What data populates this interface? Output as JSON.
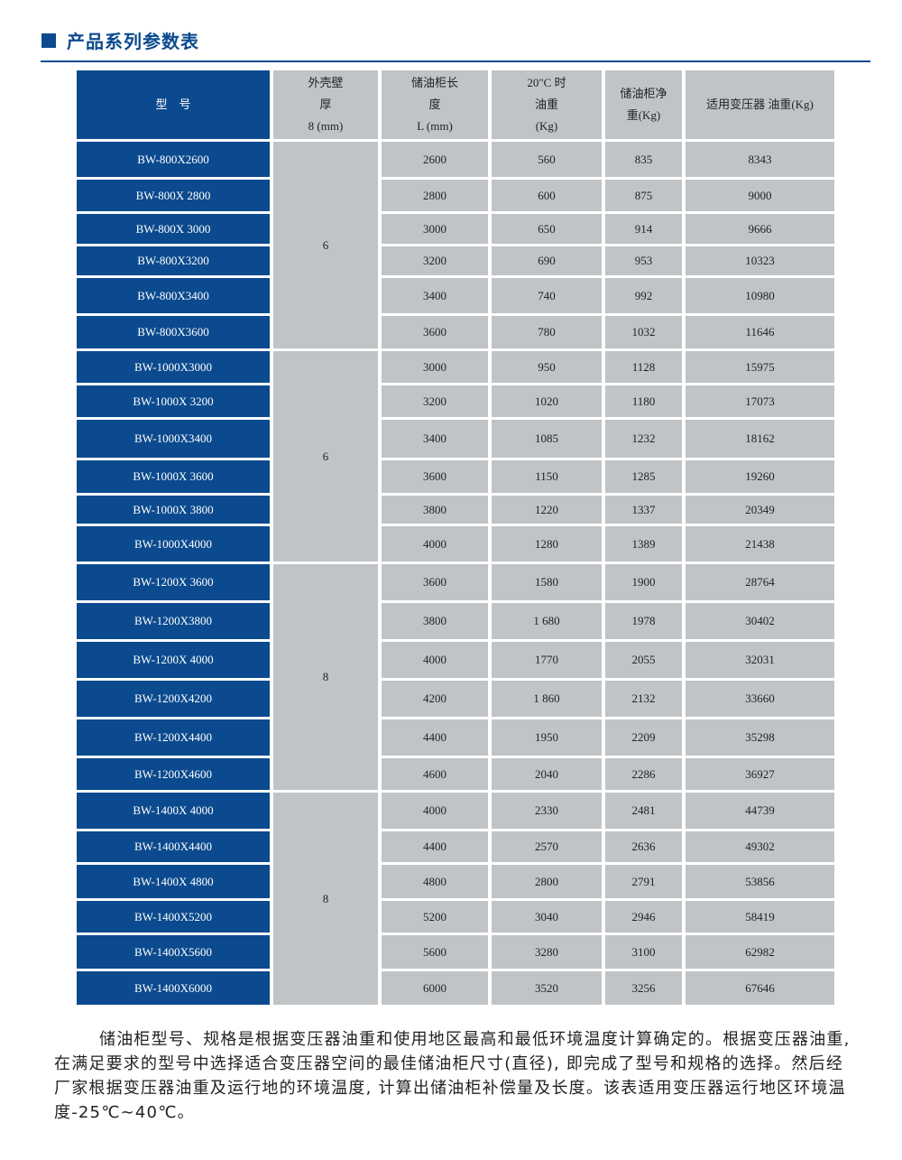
{
  "title": "产品系列参数表",
  "colors": {
    "accent": "#0b4a8e",
    "cell": "#c1c4c7"
  },
  "headers": [
    "型　号",
    "外壳壁\n厚\n8 (mm)",
    "储油柜长\n度\nL (mm)",
    "20\"C 时\n油重\n(Kg)",
    "储油柜净\n重(Kg)",
    "适用变压器 油重(Kg)"
  ],
  "groups": [
    {
      "thickness": "6",
      "rows": [
        [
          "BW-800X2600",
          "2600",
          "560",
          "835",
          "8343"
        ],
        [
          "BW-800X 2800",
          "2800",
          "600",
          "875",
          "9000"
        ],
        [
          "BW-800X 3000",
          "3000",
          "650",
          "914",
          "9666"
        ],
        [
          "BW-800X3200",
          "3200",
          "690",
          "953",
          "10323"
        ],
        [
          "BW-800X3400",
          "3400",
          "740",
          "992",
          "10980"
        ],
        [
          "BW-800X3600",
          "3600",
          "780",
          "1032",
          "11646"
        ]
      ]
    },
    {
      "thickness": "6",
      "rows": [
        [
          "BW-1000X3000",
          "3000",
          "950",
          "1128",
          "15975"
        ],
        [
          "BW-1000X 3200",
          "3200",
          "1020",
          "1180",
          "17073"
        ],
        [
          "BW-1000X3400",
          "3400",
          "1085",
          "1232",
          "18162"
        ],
        [
          "BW-1000X 3600",
          "3600",
          "1150",
          "1285",
          "19260"
        ],
        [
          "BW-1000X 3800",
          "3800",
          "1220",
          "1337",
          "20349"
        ],
        [
          "BW-1000X4000",
          "4000",
          "1280",
          "1389",
          "21438"
        ]
      ]
    },
    {
      "thickness": "8",
      "rows": [
        [
          "BW-1200X 3600",
          "3600",
          "1580",
          "1900",
          "28764"
        ],
        [
          "BW-1200X3800",
          "3800",
          "1 680",
          "1978",
          "30402"
        ],
        [
          "BW-1200X 4000",
          "4000",
          "1770",
          "2055",
          "32031"
        ],
        [
          "BW-1200X4200",
          "4200",
          "1 860",
          "2132",
          "33660"
        ],
        [
          "BW-1200X4400",
          "4400",
          "1950",
          "2209",
          "35298"
        ],
        [
          "BW-1200X4600",
          "4600",
          "2040",
          "2286",
          "36927"
        ]
      ]
    },
    {
      "thickness": "8",
      "rows": [
        [
          "BW-1400X 4000",
          "4000",
          "2330",
          "2481",
          "44739"
        ],
        [
          "BW-1400X4400",
          "4400",
          "2570",
          "2636",
          "49302"
        ],
        [
          "BW-1400X 4800",
          "4800",
          "2800",
          "2791",
          "53856"
        ],
        [
          "BW-1400X5200",
          "5200",
          "3040",
          "2946",
          "58419"
        ],
        [
          "BW-1400X5600",
          "5600",
          "3280",
          "3100",
          "62982"
        ],
        [
          "BW-1400X6000",
          "6000",
          "3520",
          "3256",
          "67646"
        ]
      ]
    }
  ],
  "note": "储油柜型号、规格是根据变压器油重和使用地区最高和最低环境温度计算确定的。根据变压器油重, 在满足要求的型号中选择适合变压器空间的最佳储油柜尺寸(直径), 即完成了型号和规格的选择。然后经厂家根据变压器油重及运行地的环境温度, 计算出储油柜补偿量及长度。该表适用变压器运行地区环境温度-25℃~40℃。"
}
